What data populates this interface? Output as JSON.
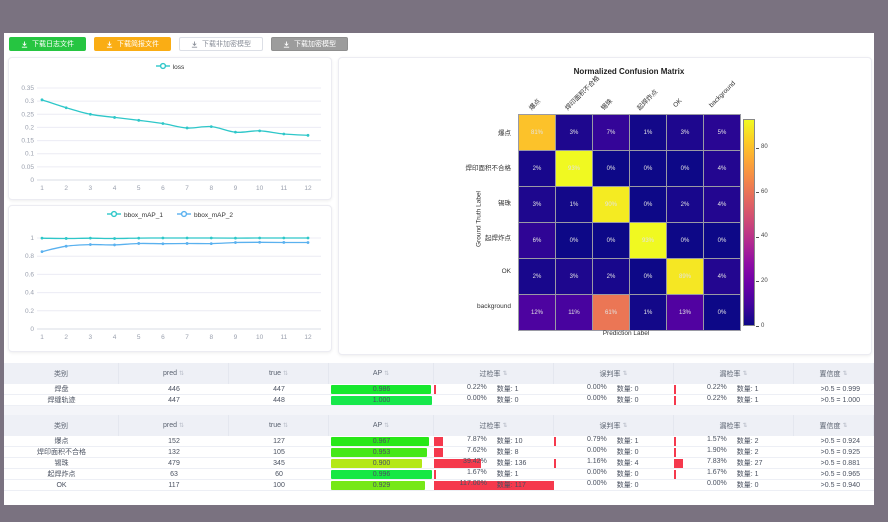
{
  "toolbar": {
    "buttons": [
      {
        "id": "log",
        "label": "下载日志文件",
        "style": "green"
      },
      {
        "id": "report",
        "label": "下载简报文件",
        "style": "orange"
      },
      {
        "id": "plain-model",
        "label": "下载非加密模型",
        "style": "white"
      },
      {
        "id": "encrypted-model",
        "label": "下载加密模型",
        "style": "gray"
      }
    ]
  },
  "chart_data": [
    {
      "type": "line",
      "name": "loss-chart",
      "x": [
        1,
        2,
        3,
        4,
        5,
        6,
        7,
        8,
        9,
        10,
        11,
        12
      ],
      "series": [
        {
          "name": "loss",
          "color": "#2ec7c9",
          "values": [
            0.305,
            0.275,
            0.25,
            0.238,
            0.227,
            0.215,
            0.198,
            0.203,
            0.182,
            0.187,
            0.175,
            0.17
          ]
        }
      ],
      "ylim": [
        0,
        0.35
      ],
      "yticks": [
        0,
        0.05,
        0.1,
        0.15,
        0.2,
        0.25,
        0.3,
        0.35
      ],
      "grid": true,
      "legend_position": "top"
    },
    {
      "type": "line",
      "name": "map-chart",
      "x": [
        1,
        2,
        3,
        4,
        5,
        6,
        7,
        8,
        9,
        10,
        11,
        12
      ],
      "series": [
        {
          "name": "bbox_mAP_1",
          "color": "#2ec7c9",
          "values": [
            0.998,
            0.995,
            0.998,
            0.994,
            0.999,
            1,
            1,
            1,
            0.999,
            1,
            1,
            1
          ]
        },
        {
          "name": "bbox_mAP_2",
          "color": "#5ab1ef",
          "values": [
            0.85,
            0.91,
            0.928,
            0.924,
            0.94,
            0.937,
            0.94,
            0.938,
            0.95,
            0.953,
            0.951,
            0.95
          ]
        }
      ],
      "ylim": [
        0,
        1
      ],
      "yticks": [
        0,
        0.2,
        0.4,
        0.6,
        0.8,
        1
      ],
      "grid": true,
      "legend_position": "top"
    },
    {
      "type": "heatmap",
      "name": "confusion-matrix",
      "title": "Normalized Confusion Matrix",
      "xlabel": "Prediction Label",
      "ylabel": "Ground Truth Label",
      "labels": [
        "爆点",
        "焊印面积不合格",
        "锡珠",
        "起焊炸点",
        "OK",
        "background"
      ],
      "values_percent": [
        [
          81,
          3,
          7,
          1,
          3,
          5
        ],
        [
          2,
          93,
          0,
          0,
          0,
          4
        ],
        [
          3,
          1,
          90,
          0,
          2,
          4
        ],
        [
          6,
          0,
          0,
          93,
          0,
          0
        ],
        [
          2,
          3,
          2,
          0,
          89,
          4
        ],
        [
          12,
          11,
          61,
          1,
          13,
          0
        ]
      ],
      "colormap": "plasma",
      "vmax": 93,
      "colorbar_ticks": [
        0,
        20,
        40,
        60,
        80
      ]
    }
  ],
  "tables": {
    "columns": [
      {
        "key": "class",
        "label": "类别",
        "sortable": false
      },
      {
        "key": "pred",
        "label": "pred",
        "sortable": true
      },
      {
        "key": "true",
        "label": "true",
        "sortable": true
      },
      {
        "key": "ap",
        "label": "AP",
        "sortable": true
      },
      {
        "key": "over",
        "label": "过检率",
        "sortable": true
      },
      {
        "key": "mis",
        "label": "误判率",
        "sortable": true
      },
      {
        "key": "miss",
        "label": "漏检率",
        "sortable": true
      },
      {
        "key": "conf",
        "label": "置信度",
        "sortable": true
      }
    ],
    "count_label": "数量:",
    "sort_icon": "⇅",
    "groups": [
      {
        "rows": [
          {
            "class": "焊盘",
            "pred": "446",
            "true": "447",
            "ap": "0.986",
            "over": {
              "rate": "0.22%",
              "count": "1"
            },
            "mis": {
              "rate": "0.00%",
              "count": "0"
            },
            "miss": {
              "rate": "0.22%",
              "count": "1"
            },
            "conf": ">0.5 = 0.999"
          },
          {
            "class": "焊缝轨迹",
            "pred": "447",
            "true": "448",
            "ap": "1.000",
            "over": {
              "rate": "0.00%",
              "count": "0"
            },
            "mis": {
              "rate": "0.00%",
              "count": "0"
            },
            "miss": {
              "rate": "0.22%",
              "count": "1"
            },
            "conf": ">0.5 = 1.000"
          }
        ]
      },
      {
        "rows": [
          {
            "class": "爆点",
            "pred": "152",
            "true": "127",
            "ap": "0.967",
            "over": {
              "rate": "7.87%",
              "count": "10"
            },
            "mis": {
              "rate": "0.79%",
              "count": "1"
            },
            "miss": {
              "rate": "1.57%",
              "count": "2"
            },
            "conf": ">0.5 = 0.924"
          },
          {
            "class": "焊印面积不合格",
            "pred": "132",
            "true": "105",
            "ap": "0.953",
            "over": {
              "rate": "7.62%",
              "count": "8"
            },
            "mis": {
              "rate": "0.00%",
              "count": "0"
            },
            "miss": {
              "rate": "1.90%",
              "count": "2"
            },
            "conf": ">0.5 = 0.925"
          },
          {
            "class": "锡珠",
            "pred": "479",
            "true": "345",
            "ap": "0.900",
            "over": {
              "rate": "39.42%",
              "count": "136"
            },
            "mis": {
              "rate": "1.16%",
              "count": "4"
            },
            "miss": {
              "rate": "7.83%",
              "count": "27"
            },
            "conf": ">0.5 = 0.881"
          },
          {
            "class": "起焊炸点",
            "pred": "63",
            "true": "60",
            "ap": "0.996",
            "over": {
              "rate": "1.67%",
              "count": "1"
            },
            "mis": {
              "rate": "0.00%",
              "count": "0"
            },
            "miss": {
              "rate": "1.67%",
              "count": "1"
            },
            "conf": ">0.5 = 0.965"
          },
          {
            "class": "OK",
            "pred": "117",
            "true": "100",
            "ap": "0.929",
            "over": {
              "rate": "117.00%",
              "count": "117"
            },
            "mis": {
              "rate": "0.00%",
              "count": "0"
            },
            "miss": {
              "rate": "0.00%",
              "count": "0"
            },
            "conf": ">0.5 = 0.940"
          }
        ]
      }
    ]
  },
  "colors": {
    "accent_green": "#26c541",
    "accent_orange": "#faad14",
    "button_gray": "#9c9c9c",
    "bar_red": "#f5394d",
    "series_teal": "#2ec7c9",
    "series_blue": "#5ab1ef",
    "frame": "#7a7280"
  }
}
